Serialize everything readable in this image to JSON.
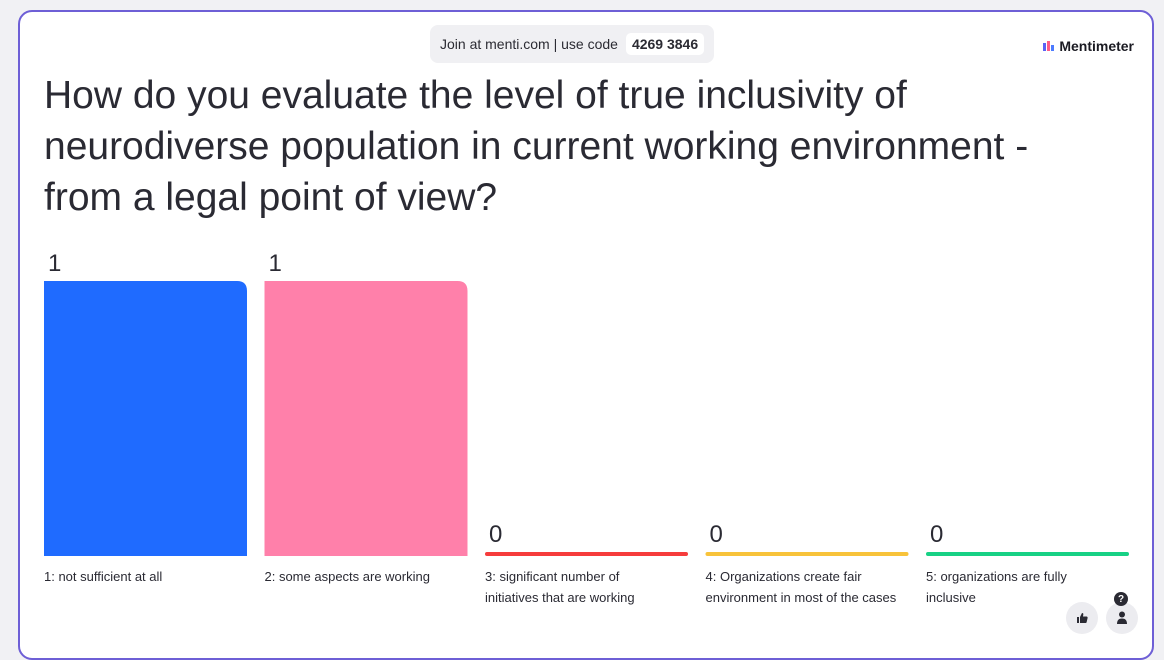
{
  "join": {
    "text": "Join at menti.com | use code",
    "code": "4269 3846"
  },
  "brand": {
    "name": "Mentimeter"
  },
  "question": "How do you evaluate the level of true inclusivity of neurodiverse population in current working environment - from a legal point of view?",
  "chart_data": {
    "type": "bar",
    "categories": [
      [
        "1: not sufficient at all"
      ],
      [
        "2: some aspects are working"
      ],
      [
        "3: significant number of",
        "initiatives that are working"
      ],
      [
        "4: Organizations create fair",
        "environment in most of the cases"
      ],
      [
        "5: organizations are fully",
        "inclusive"
      ]
    ],
    "values": [
      1,
      1,
      0,
      0,
      0
    ],
    "value_labels": [
      "1",
      "1",
      "0",
      "0",
      "0"
    ],
    "colors": [
      "#1f6bff",
      "#ff80aa",
      "#f63c3c",
      "#f8c33a",
      "#17d185"
    ],
    "ylim": [
      0,
      1
    ]
  },
  "controls": {
    "like_icon": "thumbs-up-icon",
    "help_icon": "question-icon",
    "person_icon": "person-icon"
  }
}
